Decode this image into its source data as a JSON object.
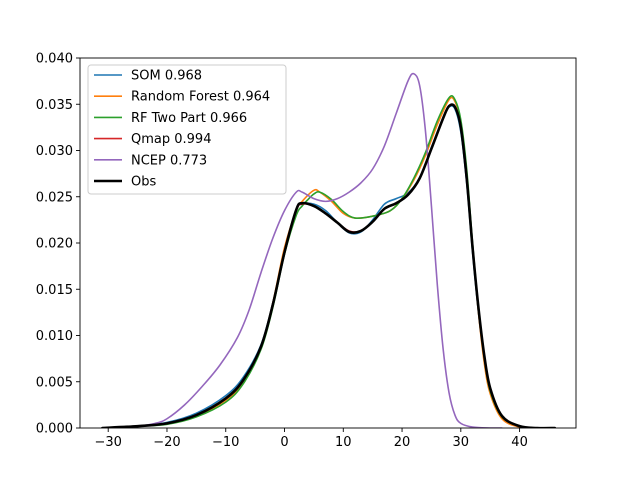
{
  "chart_data": {
    "type": "line",
    "title": "",
    "xlabel": "",
    "ylabel": "",
    "xlim": [
      -34.8,
      49.6
    ],
    "ylim": [
      0.0,
      0.04
    ],
    "x_ticks": [
      -30,
      -20,
      -10,
      0,
      10,
      20,
      30,
      40
    ],
    "y_ticks": [
      0.0,
      0.005,
      0.01,
      0.015,
      0.02,
      0.025,
      0.03,
      0.035,
      0.04
    ],
    "x_tick_labels": [
      "−30",
      "−20",
      "−10",
      "0",
      "10",
      "20",
      "30",
      "40"
    ],
    "y_tick_labels": [
      "0.000",
      "0.005",
      "0.010",
      "0.015",
      "0.020",
      "0.025",
      "0.030",
      "0.035",
      "0.040"
    ],
    "grid": false,
    "legend_position": "upper-left",
    "series": [
      {
        "name": "SOM 0.968",
        "color": "#1f77b4",
        "width": 1.6,
        "points": [
          [
            -31,
            0
          ],
          [
            -25,
            0.0002
          ],
          [
            -20,
            0.0006
          ],
          [
            -15,
            0.0016
          ],
          [
            -10,
            0.0035
          ],
          [
            -7,
            0.0055
          ],
          [
            -4,
            0.009
          ],
          [
            -2,
            0.0135
          ],
          [
            0,
            0.019
          ],
          [
            2,
            0.0235
          ],
          [
            3,
            0.0242
          ],
          [
            5,
            0.0242
          ],
          [
            7,
            0.0235
          ],
          [
            9,
            0.0222
          ],
          [
            11,
            0.0211
          ],
          [
            13,
            0.0212
          ],
          [
            15,
            0.0225
          ],
          [
            17,
            0.0242
          ],
          [
            19,
            0.0248
          ],
          [
            21,
            0.0254
          ],
          [
            23,
            0.027
          ],
          [
            25,
            0.0302
          ],
          [
            27,
            0.0335
          ],
          [
            28,
            0.0347
          ],
          [
            29,
            0.0345
          ],
          [
            30,
            0.032
          ],
          [
            31,
            0.0265
          ],
          [
            32,
            0.019
          ],
          [
            33,
            0.0125
          ],
          [
            34,
            0.0075
          ],
          [
            35,
            0.004
          ],
          [
            37,
            0.0012
          ],
          [
            40,
            0.0002
          ],
          [
            43,
            0.0
          ],
          [
            46,
            0.0
          ]
        ]
      },
      {
        "name": "Random Forest 0.964",
        "color": "#ff7f0e",
        "width": 1.6,
        "points": [
          [
            -31,
            0
          ],
          [
            -25,
            0.0002
          ],
          [
            -20,
            0.0005
          ],
          [
            -15,
            0.0013
          ],
          [
            -10,
            0.003
          ],
          [
            -7,
            0.005
          ],
          [
            -4,
            0.0088
          ],
          [
            -2,
            0.0135
          ],
          [
            0,
            0.0195
          ],
          [
            2,
            0.0235
          ],
          [
            3,
            0.0245
          ],
          [
            5,
            0.0257
          ],
          [
            6,
            0.0255
          ],
          [
            8,
            0.0245
          ],
          [
            10,
            0.0232
          ],
          [
            12,
            0.0227
          ],
          [
            15,
            0.0229
          ],
          [
            18,
            0.0235
          ],
          [
            20,
            0.0248
          ],
          [
            22,
            0.0268
          ],
          [
            24,
            0.0295
          ],
          [
            26,
            0.0328
          ],
          [
            28,
            0.0355
          ],
          [
            29,
            0.0353
          ],
          [
            30,
            0.033
          ],
          [
            31,
            0.0275
          ],
          [
            32,
            0.0195
          ],
          [
            33,
            0.0125
          ],
          [
            34,
            0.007
          ],
          [
            35,
            0.0037
          ],
          [
            37,
            0.001
          ],
          [
            40,
            0.0001
          ],
          [
            43,
            0.0
          ],
          [
            46,
            0.0
          ]
        ]
      },
      {
        "name": "RF Two Part 0.966",
        "color": "#2ca02c",
        "width": 1.6,
        "points": [
          [
            -31,
            0
          ],
          [
            -25,
            0.0002
          ],
          [
            -20,
            0.0004
          ],
          [
            -15,
            0.0012
          ],
          [
            -10,
            0.0028
          ],
          [
            -7,
            0.0048
          ],
          [
            -4,
            0.0085
          ],
          [
            -2,
            0.013
          ],
          [
            0,
            0.0188
          ],
          [
            2,
            0.023
          ],
          [
            3,
            0.024
          ],
          [
            4,
            0.0247
          ],
          [
            5,
            0.0253
          ],
          [
            6,
            0.0255
          ],
          [
            8,
            0.0247
          ],
          [
            10,
            0.0234
          ],
          [
            12,
            0.0227
          ],
          [
            15,
            0.0229
          ],
          [
            18,
            0.0235
          ],
          [
            20,
            0.0248
          ],
          [
            22,
            0.027
          ],
          [
            24,
            0.0298
          ],
          [
            26,
            0.0332
          ],
          [
            28,
            0.0357
          ],
          [
            29,
            0.0355
          ],
          [
            30,
            0.0333
          ],
          [
            31,
            0.028
          ],
          [
            32,
            0.02
          ],
          [
            33,
            0.013
          ],
          [
            34,
            0.0075
          ],
          [
            35,
            0.004
          ],
          [
            37,
            0.0012
          ],
          [
            40,
            0.0002
          ],
          [
            43,
            0.0
          ],
          [
            46,
            0.0
          ]
        ]
      },
      {
        "name": "Qmap 0.994",
        "color": "#d62728",
        "width": 1.6,
        "points": [
          [
            -31,
            0
          ],
          [
            -25,
            0.0002
          ],
          [
            -20,
            0.0005
          ],
          [
            -15,
            0.0014
          ],
          [
            -10,
            0.0032
          ],
          [
            -7,
            0.0052
          ],
          [
            -4,
            0.0088
          ],
          [
            -2,
            0.0132
          ],
          [
            0,
            0.019
          ],
          [
            2,
            0.0235
          ],
          [
            3,
            0.0242
          ],
          [
            5,
            0.024
          ],
          [
            7,
            0.0232
          ],
          [
            9,
            0.0222
          ],
          [
            11,
            0.0213
          ],
          [
            13,
            0.0213
          ],
          [
            15,
            0.0223
          ],
          [
            17,
            0.0237
          ],
          [
            19,
            0.0243
          ],
          [
            21,
            0.0252
          ],
          [
            23,
            0.027
          ],
          [
            25,
            0.0302
          ],
          [
            27,
            0.0335
          ],
          [
            28,
            0.0348
          ],
          [
            29,
            0.0347
          ],
          [
            30,
            0.0325
          ],
          [
            31,
            0.027
          ],
          [
            32,
            0.0195
          ],
          [
            33,
            0.013
          ],
          [
            34,
            0.0078
          ],
          [
            35,
            0.0043
          ],
          [
            37,
            0.0013
          ],
          [
            40,
            0.0002
          ],
          [
            43,
            0.0
          ],
          [
            46,
            0.0
          ]
        ]
      },
      {
        "name": "NCEP 0.773",
        "color": "#9467bd",
        "width": 1.6,
        "points": [
          [
            -31,
            0
          ],
          [
            -28,
            0.0001
          ],
          [
            -25,
            0.0002
          ],
          [
            -22,
            0.0005
          ],
          [
            -20,
            0.001
          ],
          [
            -17,
            0.0025
          ],
          [
            -14,
            0.0045
          ],
          [
            -11,
            0.0068
          ],
          [
            -8,
            0.0098
          ],
          [
            -6,
            0.0128
          ],
          [
            -4,
            0.0168
          ],
          [
            -2,
            0.0205
          ],
          [
            0,
            0.0235
          ],
          [
            2,
            0.0255
          ],
          [
            3,
            0.0255
          ],
          [
            5,
            0.0248
          ],
          [
            7,
            0.0245
          ],
          [
            9,
            0.0248
          ],
          [
            11,
            0.0255
          ],
          [
            13,
            0.0265
          ],
          [
            15,
            0.028
          ],
          [
            17,
            0.0305
          ],
          [
            19,
            0.034
          ],
          [
            21,
            0.0375
          ],
          [
            22,
            0.0383
          ],
          [
            23,
            0.037
          ],
          [
            24,
            0.032
          ],
          [
            25,
            0.024
          ],
          [
            26,
            0.0155
          ],
          [
            27,
            0.0085
          ],
          [
            28,
            0.0038
          ],
          [
            29,
            0.0014
          ],
          [
            30,
            0.0005
          ],
          [
            32,
            0.0001
          ],
          [
            35,
            0.0
          ],
          [
            37,
            0.0
          ]
        ]
      },
      {
        "name": "Obs",
        "color": "#000000",
        "width": 2.6,
        "points": [
          [
            -31,
            0
          ],
          [
            -25,
            0.0002
          ],
          [
            -20,
            0.0005
          ],
          [
            -15,
            0.0014
          ],
          [
            -10,
            0.0032
          ],
          [
            -7,
            0.0052
          ],
          [
            -4,
            0.0088
          ],
          [
            -2,
            0.0133
          ],
          [
            0,
            0.019
          ],
          [
            2,
            0.0236
          ],
          [
            3,
            0.0243
          ],
          [
            5,
            0.024
          ],
          [
            7,
            0.0232
          ],
          [
            9,
            0.0222
          ],
          [
            11,
            0.0212
          ],
          [
            13,
            0.0213
          ],
          [
            15,
            0.0223
          ],
          [
            17,
            0.0237
          ],
          [
            19,
            0.0243
          ],
          [
            21,
            0.0252
          ],
          [
            23,
            0.027
          ],
          [
            25,
            0.0302
          ],
          [
            27,
            0.0335
          ],
          [
            28,
            0.0348
          ],
          [
            29,
            0.0347
          ],
          [
            30,
            0.0325
          ],
          [
            31,
            0.027
          ],
          [
            32,
            0.0195
          ],
          [
            33,
            0.013
          ],
          [
            34,
            0.0078
          ],
          [
            35,
            0.0043
          ],
          [
            37,
            0.0013
          ],
          [
            40,
            0.0002
          ],
          [
            43,
            0.0
          ],
          [
            46,
            0.0
          ]
        ]
      }
    ]
  }
}
